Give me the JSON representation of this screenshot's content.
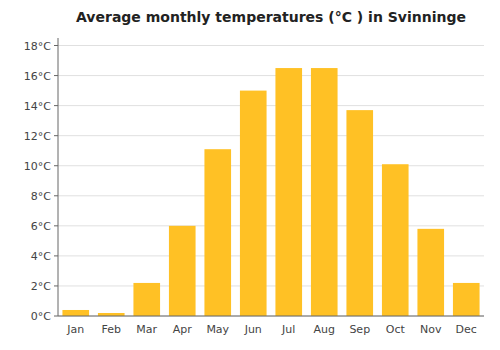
{
  "chart_data": {
    "type": "bar",
    "title": "Average monthly temperatures (°C ) in Svinninge",
    "categories": [
      "Jan",
      "Feb",
      "Mar",
      "Apr",
      "May",
      "Jun",
      "Jul",
      "Aug",
      "Sep",
      "Oct",
      "Nov",
      "Dec"
    ],
    "values": [
      0.4,
      0.2,
      2.2,
      6.0,
      11.1,
      15.0,
      16.5,
      16.5,
      13.7,
      10.1,
      5.8,
      2.2
    ],
    "color": "#FFC125",
    "ylim": [
      0,
      18.5
    ],
    "yticks": [
      {
        "value": 0,
        "label": "0°C"
      },
      {
        "value": 2,
        "label": "2°C"
      },
      {
        "value": 4,
        "label": "4°C"
      },
      {
        "value": 6,
        "label": "6°C"
      },
      {
        "value": 8,
        "label": "8°C"
      },
      {
        "value": 10,
        "label": "10°C"
      },
      {
        "value": 12,
        "label": "12°C"
      },
      {
        "value": 14,
        "label": "14°C"
      },
      {
        "value": 16,
        "label": "16°C"
      },
      {
        "value": 18,
        "label": "18°C"
      }
    ],
    "grid": true
  }
}
